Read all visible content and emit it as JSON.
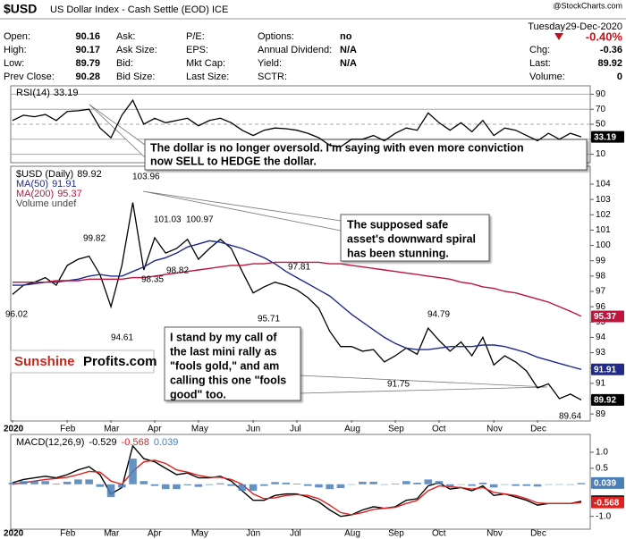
{
  "header": {
    "symbol": "$USD",
    "name": "US Dollar Index - Cash Settle (EOD) ICE",
    "source": "@StockCharts.com",
    "day": "Tuesday",
    "date": "29-Dec-2020",
    "change_pct": "-0.40%",
    "fields": [
      [
        {
          "label": "Open:",
          "value": 90.16
        },
        {
          "label": "High:",
          "value": 90.17
        },
        {
          "label": "Low:",
          "value": 89.79
        },
        {
          "label": "Prev Close:",
          "value": 90.28
        }
      ],
      [
        {
          "label": "Ask:"
        },
        {
          "label": "Ask Size:"
        },
        {
          "label": "Bid:"
        },
        {
          "label": "Bid Size:"
        }
      ],
      [
        {
          "label": "P/E:"
        },
        {
          "label": "EPS:"
        },
        {
          "label": "Mkt Cap:"
        },
        {
          "label": "Last Size:"
        }
      ],
      [
        {
          "label": "Options:",
          "value": "no"
        },
        {
          "label": "Annual Dividend:",
          "value": "N/A"
        },
        {
          "label": "Yield:",
          "value": "N/A"
        },
        {
          "label": "SCTR:"
        }
      ]
    ],
    "right_fields": [
      {
        "label": "Chg:",
        "value": -0.36
      },
      {
        "label": "Last:",
        "value": 89.92
      },
      {
        "label": "Volume:",
        "value": 0
      }
    ]
  },
  "logo": [
    "Sunshine",
    "Profits.com"
  ],
  "callouts": [
    [
      "The dollar is no longer oversold. I'm saying with even more conviction",
      "now SELL to HEDGE the dollar."
    ],
    [
      "The supposed safe",
      "asset's downward spiral",
      "has been stunning."
    ],
    [
      "I stand by my call of",
      "the last mini rally as",
      "\"fools gold,\" and am",
      "calling this one \"fools",
      "good\" too."
    ]
  ],
  "chart_data": [
    {
      "type": "line",
      "legend": "upper left",
      "grid": true,
      "ylim": [
        0,
        100
      ],
      "yticks": [
        10,
        30,
        50,
        70,
        90
      ],
      "series": [
        {
          "name": "RSI(14)",
          "color": "#000000",
          "values": [
            55,
            62,
            60,
            63,
            55,
            67,
            68,
            70,
            45,
            32,
            62,
            82,
            50,
            58,
            52,
            55,
            58,
            48,
            55,
            58,
            52,
            42,
            35,
            42,
            45,
            44,
            42,
            38,
            32,
            22,
            20,
            30,
            30,
            35,
            28,
            38,
            45,
            42,
            65,
            52,
            42,
            52,
            40,
            55,
            35,
            45,
            42,
            35,
            28,
            38,
            30,
            38,
            33.19
          ]
        }
      ]
    },
    {
      "type": "line",
      "legend": "upper left",
      "grid": false,
      "ylim": [
        88.6,
        105.05
      ],
      "yticks": [
        89,
        90,
        91,
        92,
        93,
        94,
        95,
        96,
        97,
        98,
        99,
        100,
        101,
        102,
        103,
        104
      ],
      "categories": [
        "2020",
        null,
        null,
        null,
        null,
        "Feb",
        null,
        null,
        null,
        "Mar",
        null,
        null,
        null,
        "Apr",
        null,
        null,
        null,
        "May",
        null,
        null,
        null,
        null,
        "Jun",
        null,
        null,
        null,
        "Jul",
        null,
        null,
        null,
        null,
        "Aug",
        null,
        null,
        null,
        "Sep",
        null,
        null,
        null,
        "Oct",
        null,
        null,
        null,
        null,
        "Nov",
        null,
        null,
        null,
        "Dec",
        null,
        null,
        null,
        null
      ],
      "series": [
        {
          "name": "$USD (Daily)",
          "color": "#000000",
          "values": [
            96.8,
            97.4,
            97.6,
            97.9,
            97.4,
            98.7,
            99.1,
            99.3,
            98.1,
            96.0,
            98.7,
            102.8,
            98.4,
            100.5,
            99.5,
            99.8,
            100.4,
            99.1,
            99.8,
            100.4,
            99.8,
            98.3,
            96.9,
            97.3,
            97.6,
            97.4,
            97.1,
            96.6,
            95.9,
            94.4,
            93.4,
            93.4,
            93.1,
            93.2,
            92.4,
            92.8,
            93.3,
            92.9,
            94.6,
            93.8,
            93.1,
            93.7,
            92.8,
            94.0,
            92.2,
            92.8,
            92.4,
            91.8,
            90.7,
            90.97,
            90.0,
            90.3,
            89.92
          ]
        },
        {
          "name": "MA(50)",
          "color": "#1f2a8c",
          "values": [
            97.4,
            97.4,
            97.5,
            97.6,
            97.6,
            97.7,
            97.8,
            98.0,
            98.1,
            98.0,
            98.0,
            98.3,
            98.6,
            99.0,
            99.2,
            99.5,
            99.9,
            100.1,
            100.3,
            100.2,
            100.0,
            99.8,
            99.5,
            99.2,
            98.8,
            98.3,
            97.9,
            97.5,
            97.1,
            96.7,
            96.1,
            95.5,
            95.0,
            94.5,
            94.0,
            93.6,
            93.3,
            93.2,
            93.2,
            93.3,
            93.4,
            93.4,
            93.4,
            93.5,
            93.5,
            93.4,
            93.2,
            93.0,
            92.7,
            92.5,
            92.3,
            92.1,
            91.91
          ]
        },
        {
          "name": "MA(200)",
          "color": "#c0143c",
          "values": [
            97.6,
            97.6,
            97.6,
            97.6,
            97.7,
            97.7,
            97.7,
            97.8,
            97.8,
            97.8,
            97.8,
            97.9,
            97.9,
            98.0,
            98.1,
            98.2,
            98.3,
            98.4,
            98.5,
            98.6,
            98.7,
            98.7,
            98.8,
            98.8,
            98.9,
            98.9,
            98.9,
            98.9,
            98.9,
            98.8,
            98.8,
            98.7,
            98.6,
            98.5,
            98.4,
            98.3,
            98.2,
            98.1,
            98.0,
            97.9,
            97.8,
            97.6,
            97.5,
            97.3,
            97.2,
            97.0,
            96.9,
            96.7,
            96.5,
            96.3,
            96.0,
            95.7,
            95.37
          ]
        }
      ],
      "volume_label": "Volume undef",
      "point_labels": [
        103.96,
        101.03,
        100.97,
        99.82,
        98.35,
        98.82,
        96.02,
        94.61,
        97.81,
        95.71,
        94.79,
        91.75,
        89.64
      ]
    },
    {
      "type": "macd",
      "legend": "upper left",
      "grid": false,
      "title": "MACD(12,26,9)",
      "ylim": [
        -1.4,
        1.5
      ],
      "yticks": [
        {
          "value": 1,
          "label": "1.0"
        },
        0.5,
        {
          "value": -1,
          "label": "-1.0"
        }
      ],
      "categories": [
        "2020",
        null,
        null,
        null,
        null,
        "Feb",
        null,
        null,
        null,
        "Mar",
        null,
        null,
        null,
        "Apr",
        null,
        null,
        null,
        "May",
        null,
        null,
        null,
        null,
        "Jun",
        null,
        null,
        null,
        "Jul",
        null,
        null,
        null,
        null,
        "Aug",
        null,
        null,
        null,
        "Sep",
        null,
        null,
        null,
        "Oct",
        null,
        null,
        null,
        null,
        "Nov",
        null,
        null,
        null,
        "Dec",
        null,
        null,
        null,
        null
      ],
      "series": [
        {
          "color": "#000000",
          "values": [
            0.05,
            0.15,
            0.2,
            0.25,
            0.2,
            0.3,
            0.45,
            0.55,
            0.3,
            -0.3,
            -0.1,
            1.2,
            0.8,
            0.7,
            0.5,
            0.3,
            0.35,
            0.2,
            0.2,
            0.25,
            0.1,
            -0.2,
            -0.5,
            -0.5,
            -0.35,
            -0.3,
            -0.3,
            -0.4,
            -0.55,
            -0.8,
            -1.0,
            -0.95,
            -0.8,
            -0.7,
            -0.75,
            -0.7,
            -0.5,
            -0.45,
            -0.05,
            0.05,
            -0.15,
            -0.1,
            -0.2,
            -0.05,
            -0.35,
            -0.3,
            -0.4,
            -0.5,
            -0.65,
            -0.6,
            -0.6,
            -0.6,
            -0.529
          ]
        },
        {
          "color": "#e0201e",
          "values": [
            0.0,
            0.05,
            0.1,
            0.15,
            0.18,
            0.22,
            0.3,
            0.4,
            0.38,
            0.1,
            0.0,
            0.4,
            0.7,
            0.75,
            0.65,
            0.45,
            0.38,
            0.28,
            0.22,
            0.22,
            0.15,
            0.0,
            -0.3,
            -0.45,
            -0.42,
            -0.35,
            -0.32,
            -0.35,
            -0.45,
            -0.65,
            -0.88,
            -0.95,
            -0.88,
            -0.78,
            -0.75,
            -0.72,
            -0.6,
            -0.5,
            -0.2,
            -0.05,
            -0.08,
            -0.1,
            -0.15,
            -0.1,
            -0.25,
            -0.3,
            -0.35,
            -0.45,
            -0.58,
            -0.6,
            -0.6,
            -0.6,
            -0.568
          ]
        },
        {
          "color": "#4a7fb5",
          "kind": "histogram",
          "values": [
            0.05,
            0.1,
            0.1,
            0.1,
            0.02,
            0.08,
            0.15,
            0.15,
            -0.08,
            -0.4,
            -0.1,
            0.8,
            0.1,
            -0.05,
            -0.15,
            -0.15,
            -0.03,
            -0.08,
            -0.02,
            0.03,
            -0.05,
            -0.2,
            -0.2,
            -0.05,
            0.07,
            0.05,
            0.02,
            -0.05,
            -0.1,
            -0.15,
            -0.12,
            0,
            0.08,
            0.08,
            0,
            0.02,
            0.1,
            0.05,
            0.15,
            0.1,
            -0.07,
            0,
            -0.05,
            0.05,
            -0.1,
            0,
            -0.05,
            -0.05,
            -0.07,
            0,
            0,
            0,
            0.039
          ]
        }
      ]
    }
  ]
}
